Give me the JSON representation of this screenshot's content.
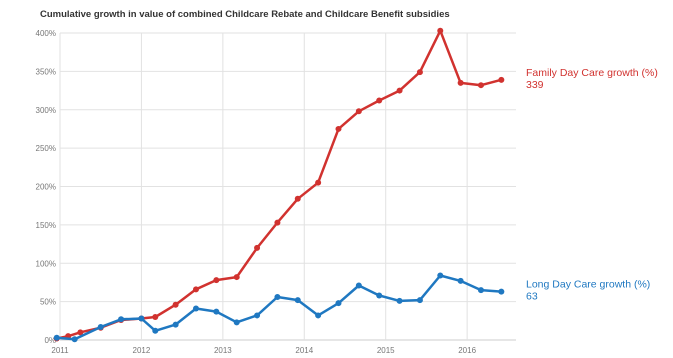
{
  "chart_data": {
    "type": "line",
    "title": "Cumulative growth in value of combined Childcare Rebate and Childcare Benefit subsidies",
    "xlabel": "",
    "ylabel": "",
    "xlim": [
      2011,
      2016.6
    ],
    "ylim": [
      0,
      400
    ],
    "y_ticks": [
      0,
      50,
      100,
      150,
      200,
      250,
      300,
      350,
      400
    ],
    "y_tick_labels": [
      "0%",
      "50%",
      "100%",
      "150%",
      "200%",
      "250%",
      "300%",
      "350%",
      "400%"
    ],
    "x_ticks": [
      2011,
      2012,
      2013,
      2014,
      2015,
      2016
    ],
    "x_tick_labels": [
      "2011",
      "2012",
      "2013",
      "2014",
      "2015",
      "2016"
    ],
    "grid": true,
    "legend": "end-of-line labels (right)",
    "series": [
      {
        "name": "Family Day Care growth (%)",
        "end_value_label": "339",
        "color": "#d1322f",
        "x": [
          2010.96,
          2011.1,
          2011.25,
          2011.5,
          2011.75,
          2012.0,
          2012.17,
          2012.42,
          2012.67,
          2012.92,
          2013.17,
          2013.42,
          2013.67,
          2013.92,
          2014.17,
          2014.42,
          2014.67,
          2014.92,
          2015.17,
          2015.42,
          2015.67,
          2015.92,
          2016.17,
          2016.42
        ],
        "y": [
          2,
          5,
          10,
          16,
          26,
          28,
          30,
          46,
          66,
          78,
          82,
          120,
          153,
          184,
          205,
          275,
          298,
          312,
          325,
          349,
          403,
          335,
          332,
          339
        ]
      },
      {
        "name": "Long Day Care growth (%)",
        "end_value_label": "63",
        "color": "#1f78c1",
        "x": [
          2010.96,
          2011.18,
          2011.5,
          2011.75,
          2012.0,
          2012.17,
          2012.42,
          2012.67,
          2012.92,
          2013.17,
          2013.42,
          2013.67,
          2013.92,
          2014.17,
          2014.42,
          2014.67,
          2014.92,
          2015.17,
          2015.42,
          2015.67,
          2015.92,
          2016.17,
          2016.42
        ],
        "y": [
          3,
          1,
          17,
          27,
          28,
          12,
          20,
          41,
          37,
          23,
          32,
          56,
          52,
          32,
          48,
          71,
          58,
          51,
          52,
          84,
          77,
          65,
          63
        ]
      }
    ]
  }
}
